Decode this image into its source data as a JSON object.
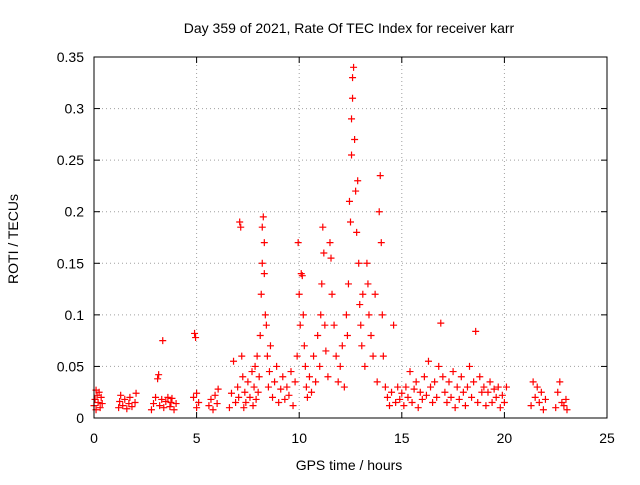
{
  "chart_data": {
    "type": "scatter",
    "title": "Day 359 of 2021, Rate Of TEC Index for receiver karr",
    "xlabel": "GPS time / hours",
    "ylabel": "ROTI / TECUs",
    "xlim": [
      0,
      25
    ],
    "ylim": [
      0,
      0.35
    ],
    "x_ticks": [
      0,
      5,
      10,
      15,
      20,
      25
    ],
    "x_tick_labels": [
      "0",
      "5",
      "10",
      "15",
      "20",
      "25"
    ],
    "y_ticks": [
      0,
      0.05,
      0.1,
      0.15,
      0.2,
      0.25,
      0.3,
      0.35
    ],
    "y_tick_labels": [
      "0",
      "0.05",
      "0.1",
      "0.15",
      "0.2",
      "0.25",
      "0.3",
      "0.35"
    ],
    "grid": true,
    "legend": "none",
    "marker": "+",
    "color": "#ff0000",
    "series": [
      {
        "points": [
          [
            0.0,
            0.012
          ],
          [
            0.05,
            0.018
          ],
          [
            0.1,
            0.008
          ],
          [
            0.15,
            0.022
          ],
          [
            0.2,
            0.015
          ],
          [
            0.25,
            0.025
          ],
          [
            0.3,
            0.01
          ],
          [
            0.35,
            0.02
          ],
          [
            0.4,
            0.014
          ],
          [
            0.1,
            0.027
          ],
          [
            1.2,
            0.01
          ],
          [
            1.25,
            0.016
          ],
          [
            1.3,
            0.022
          ],
          [
            1.4,
            0.012
          ],
          [
            1.5,
            0.018
          ],
          [
            1.6,
            0.009
          ],
          [
            1.7,
            0.014
          ],
          [
            1.75,
            0.02
          ],
          [
            1.85,
            0.011
          ],
          [
            2.0,
            0.015
          ],
          [
            2.05,
            0.024
          ],
          [
            2.8,
            0.008
          ],
          [
            2.9,
            0.014
          ],
          [
            3.0,
            0.02
          ],
          [
            3.1,
            0.038
          ],
          [
            3.15,
            0.042
          ],
          [
            3.2,
            0.012
          ],
          [
            3.3,
            0.018
          ],
          [
            3.35,
            0.075
          ],
          [
            3.4,
            0.01
          ],
          [
            3.5,
            0.016
          ],
          [
            3.6,
            0.02
          ],
          [
            3.7,
            0.011
          ],
          [
            3.75,
            0.015
          ],
          [
            3.8,
            0.019
          ],
          [
            3.9,
            0.008
          ],
          [
            4.0,
            0.014
          ],
          [
            4.85,
            0.02
          ],
          [
            4.9,
            0.082
          ],
          [
            4.95,
            0.078
          ],
          [
            5.0,
            0.024
          ],
          [
            5.0,
            0.01
          ],
          [
            5.1,
            0.015
          ],
          [
            5.6,
            0.012
          ],
          [
            5.7,
            0.018
          ],
          [
            5.8,
            0.008
          ],
          [
            5.9,
            0.022
          ],
          [
            6.0,
            0.014
          ],
          [
            6.05,
            0.028
          ],
          [
            6.6,
            0.01
          ],
          [
            6.7,
            0.024
          ],
          [
            6.8,
            0.055
          ],
          [
            6.9,
            0.015
          ],
          [
            7.0,
            0.03
          ],
          [
            7.05,
            0.02
          ],
          [
            7.1,
            0.19
          ],
          [
            7.15,
            0.185
          ],
          [
            7.2,
            0.06
          ],
          [
            7.25,
            0.04
          ],
          [
            7.3,
            0.01
          ],
          [
            7.35,
            0.025
          ],
          [
            7.4,
            0.015
          ],
          [
            7.5,
            0.035
          ],
          [
            7.6,
            0.02
          ],
          [
            7.7,
            0.045
          ],
          [
            7.75,
            0.012
          ],
          [
            7.8,
            0.03
          ],
          [
            7.85,
            0.05
          ],
          [
            7.9,
            0.018
          ],
          [
            7.95,
            0.06
          ],
          [
            8.0,
            0.025
          ],
          [
            8.05,
            0.04
          ],
          [
            8.1,
            0.08
          ],
          [
            8.15,
            0.12
          ],
          [
            8.2,
            0.15
          ],
          [
            8.2,
            0.185
          ],
          [
            8.25,
            0.195
          ],
          [
            8.3,
            0.17
          ],
          [
            8.3,
            0.14
          ],
          [
            8.35,
            0.1
          ],
          [
            8.4,
            0.09
          ],
          [
            8.45,
            0.06
          ],
          [
            8.5,
            0.03
          ],
          [
            8.55,
            0.045
          ],
          [
            8.6,
            0.07
          ],
          [
            8.7,
            0.02
          ],
          [
            8.8,
            0.035
          ],
          [
            8.9,
            0.05
          ],
          [
            9.0,
            0.015
          ],
          [
            9.1,
            0.028
          ],
          [
            9.2,
            0.04
          ],
          [
            9.3,
            0.018
          ],
          [
            9.4,
            0.03
          ],
          [
            9.5,
            0.022
          ],
          [
            9.6,
            0.045
          ],
          [
            9.7,
            0.012
          ],
          [
            9.8,
            0.035
          ],
          [
            9.9,
            0.06
          ],
          [
            9.95,
            0.17
          ],
          [
            10.0,
            0.12
          ],
          [
            10.05,
            0.09
          ],
          [
            10.1,
            0.14
          ],
          [
            10.15,
            0.138
          ],
          [
            10.2,
            0.1
          ],
          [
            10.25,
            0.07
          ],
          [
            10.3,
            0.05
          ],
          [
            10.35,
            0.03
          ],
          [
            10.4,
            0.02
          ],
          [
            10.5,
            0.04
          ],
          [
            10.6,
            0.025
          ],
          [
            10.7,
            0.06
          ],
          [
            10.8,
            0.035
          ],
          [
            10.9,
            0.08
          ],
          [
            11.0,
            0.05
          ],
          [
            11.05,
            0.1
          ],
          [
            11.1,
            0.13
          ],
          [
            11.15,
            0.185
          ],
          [
            11.2,
            0.16
          ],
          [
            11.25,
            0.09
          ],
          [
            11.3,
            0.065
          ],
          [
            11.4,
            0.04
          ],
          [
            11.5,
            0.17
          ],
          [
            11.55,
            0.155
          ],
          [
            11.6,
            0.12
          ],
          [
            11.7,
            0.09
          ],
          [
            11.8,
            0.06
          ],
          [
            11.9,
            0.035
          ],
          [
            12.0,
            0.05
          ],
          [
            12.1,
            0.07
          ],
          [
            12.2,
            0.03
          ],
          [
            12.3,
            0.1
          ],
          [
            12.35,
            0.08
          ],
          [
            12.4,
            0.13
          ],
          [
            12.45,
            0.21
          ],
          [
            12.5,
            0.19
          ],
          [
            12.55,
            0.255
          ],
          [
            12.55,
            0.29
          ],
          [
            12.6,
            0.31
          ],
          [
            12.6,
            0.33
          ],
          [
            12.65,
            0.34
          ],
          [
            12.7,
            0.27
          ],
          [
            12.75,
            0.22
          ],
          [
            12.8,
            0.18
          ],
          [
            12.85,
            0.23
          ],
          [
            12.9,
            0.15
          ],
          [
            12.95,
            0.11
          ],
          [
            13.0,
            0.09
          ],
          [
            13.05,
            0.07
          ],
          [
            13.1,
            0.12
          ],
          [
            13.2,
            0.05
          ],
          [
            13.3,
            0.15
          ],
          [
            13.35,
            0.13
          ],
          [
            13.4,
            0.1
          ],
          [
            13.5,
            0.08
          ],
          [
            13.6,
            0.06
          ],
          [
            13.7,
            0.12
          ],
          [
            13.8,
            0.035
          ],
          [
            13.9,
            0.2
          ],
          [
            13.95,
            0.235
          ],
          [
            14.0,
            0.17
          ],
          [
            14.05,
            0.1
          ],
          [
            14.1,
            0.06
          ],
          [
            14.2,
            0.03
          ],
          [
            14.3,
            0.02
          ],
          [
            14.4,
            0.012
          ],
          [
            14.5,
            0.025
          ],
          [
            14.6,
            0.09
          ],
          [
            14.7,
            0.015
          ],
          [
            14.8,
            0.03
          ],
          [
            14.9,
            0.018
          ],
          [
            15.0,
            0.024
          ],
          [
            15.1,
            0.012
          ],
          [
            15.2,
            0.03
          ],
          [
            15.3,
            0.02
          ],
          [
            15.4,
            0.045
          ],
          [
            15.5,
            0.015
          ],
          [
            15.6,
            0.028
          ],
          [
            15.7,
            0.035
          ],
          [
            15.8,
            0.01
          ],
          [
            15.9,
            0.025
          ],
          [
            16.0,
            0.018
          ],
          [
            16.1,
            0.04
          ],
          [
            16.2,
            0.022
          ],
          [
            16.3,
            0.055
          ],
          [
            16.4,
            0.03
          ],
          [
            16.5,
            0.015
          ],
          [
            16.6,
            0.035
          ],
          [
            16.7,
            0.02
          ],
          [
            16.8,
            0.05
          ],
          [
            16.9,
            0.092
          ],
          [
            17.0,
            0.04
          ],
          [
            17.1,
            0.025
          ],
          [
            17.2,
            0.015
          ],
          [
            17.3,
            0.035
          ],
          [
            17.4,
            0.02
          ],
          [
            17.5,
            0.045
          ],
          [
            17.6,
            0.01
          ],
          [
            17.7,
            0.03
          ],
          [
            17.8,
            0.018
          ],
          [
            17.9,
            0.04
          ],
          [
            18.0,
            0.025
          ],
          [
            18.1,
            0.012
          ],
          [
            18.2,
            0.03
          ],
          [
            18.3,
            0.05
          ],
          [
            18.4,
            0.02
          ],
          [
            18.5,
            0.035
          ],
          [
            18.6,
            0.084
          ],
          [
            18.7,
            0.015
          ],
          [
            18.8,
            0.04
          ],
          [
            18.9,
            0.025
          ],
          [
            19.0,
            0.03
          ],
          [
            19.1,
            0.012
          ],
          [
            19.2,
            0.025
          ],
          [
            19.3,
            0.035
          ],
          [
            19.4,
            0.015
          ],
          [
            19.5,
            0.028
          ],
          [
            19.6,
            0.02
          ],
          [
            19.7,
            0.03
          ],
          [
            19.8,
            0.01
          ],
          [
            19.9,
            0.022
          ],
          [
            20.0,
            0.015
          ],
          [
            20.1,
            0.03
          ],
          [
            21.3,
            0.012
          ],
          [
            21.4,
            0.035
          ],
          [
            21.5,
            0.02
          ],
          [
            21.6,
            0.03
          ],
          [
            21.7,
            0.015
          ],
          [
            21.8,
            0.025
          ],
          [
            21.9,
            0.008
          ],
          [
            22.0,
            0.018
          ],
          [
            22.5,
            0.01
          ],
          [
            22.6,
            0.025
          ],
          [
            22.7,
            0.035
          ],
          [
            22.8,
            0.015
          ],
          [
            22.9,
            0.012
          ],
          [
            23.0,
            0.018
          ],
          [
            23.05,
            0.008
          ]
        ]
      }
    ]
  }
}
